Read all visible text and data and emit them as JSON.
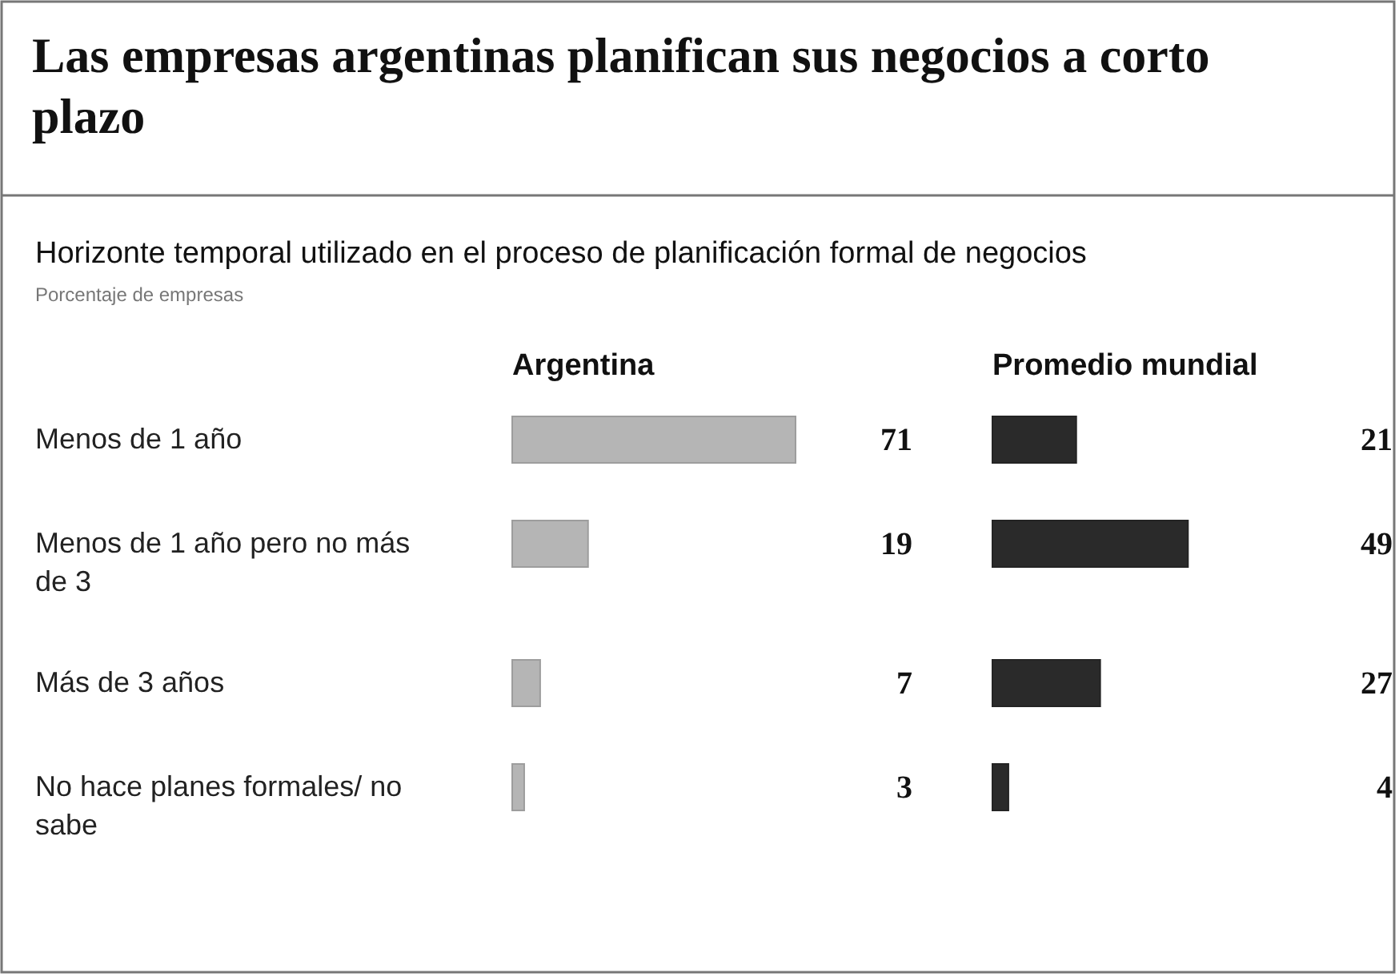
{
  "chart_data": [
    {
      "type": "bar",
      "orientation": "horizontal",
      "title": "Las empresas argentinas planifican sus negocios a corto plazo",
      "subtitle": "Horizonte temporal utilizado en el proceso de planificación formal de negocios",
      "annotations": [
        "Porcentaje de empresas"
      ],
      "categories": [
        "Menos de 1 año",
        "Menos de 1 año pero no más de 3",
        "Más de 3 años",
        "No hace planes formales/ no sabe"
      ],
      "series": [
        {
          "name": "Argentina",
          "color": "#b5b5b5",
          "values": [
            71,
            19,
            7,
            3
          ]
        }
      ],
      "data_labels": true
    },
    {
      "type": "bar",
      "orientation": "horizontal",
      "categories": [
        null,
        null,
        null,
        null
      ],
      "series": [
        {
          "name": "Promedio mundial",
          "color": "#2a2a2a",
          "values": [
            21,
            49,
            27,
            4
          ]
        }
      ],
      "data_labels": true
    }
  ]
}
